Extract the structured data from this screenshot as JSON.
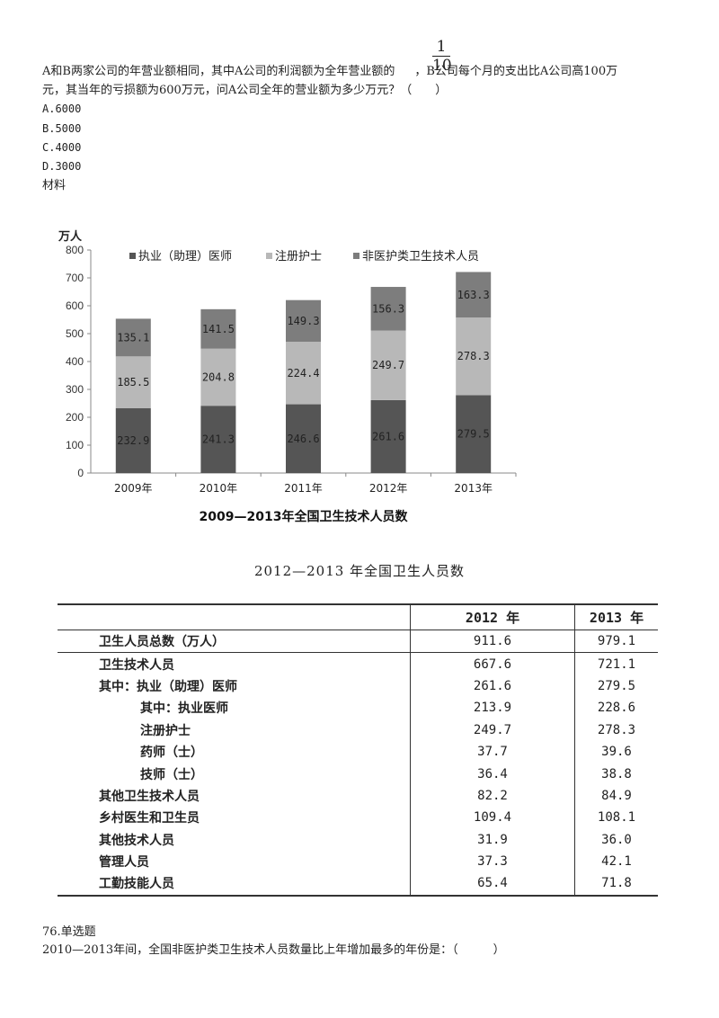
{
  "question": {
    "line1_before": "A和B两家公司的年营业额相同，其中A公司的利润额为全年营业额的",
    "line1_after": "，B公司每个月的支出比A公司高100万",
    "fraction_num": "1",
    "fraction_den": "10",
    "line2": "元，其当年的亏损额为600万元，问A公司全年的营业额为多少万元？（　　）",
    "options": [
      "A.6000",
      "B.5000",
      "C.4000",
      "D.3000"
    ],
    "material_label": "材料"
  },
  "chart_data": {
    "type": "bar",
    "stacked": true,
    "title": "2009—2013年全国卫生技术人员数",
    "ylabel": "万人",
    "ylim": [
      0,
      800
    ],
    "yticks": [
      0,
      100,
      200,
      300,
      400,
      500,
      600,
      700,
      800
    ],
    "categories": [
      "2009年",
      "2010年",
      "2011年",
      "2012年",
      "2013年"
    ],
    "series": [
      {
        "name": "执业（助理）医师",
        "color": "#555555",
        "values": [
          232.9,
          241.3,
          246.6,
          261.6,
          279.5
        ]
      },
      {
        "name": "注册护士",
        "color": "#b8b8b8",
        "values": [
          185.5,
          204.8,
          224.4,
          249.7,
          278.3
        ]
      },
      {
        "name": "非医护类卫生技术人员",
        "color": "#7d7d7d",
        "values": [
          135.1,
          141.5,
          149.3,
          156.3,
          163.3
        ]
      }
    ],
    "legend_position": "top",
    "grid": false
  },
  "table": {
    "title": "2012—2013 年全国卫生人员数",
    "headers": [
      "",
      "2012 年",
      "2013 年"
    ],
    "rows": [
      {
        "label": "卫生人员总数（万人）",
        "indent": 0,
        "v2012": "911.6",
        "v2013": "979.1"
      },
      {
        "label": "卫生技术人员",
        "indent": 0,
        "v2012": "667.6",
        "v2013": "721.1"
      },
      {
        "label": "其中：执业（助理）医师",
        "indent": 0,
        "v2012": "261.6",
        "v2013": "279.5"
      },
      {
        "label": "其中：执业医师",
        "indent": 1,
        "v2012": "213.9",
        "v2013": "228.6"
      },
      {
        "label": "注册护士",
        "indent": 1,
        "v2012": "249.7",
        "v2013": "278.3"
      },
      {
        "label": "药师（士）",
        "indent": 1,
        "v2012": "37.7",
        "v2013": "39.6"
      },
      {
        "label": "技师（士）",
        "indent": 1,
        "v2012": "36.4",
        "v2013": "38.8"
      },
      {
        "label": "其他卫生技术人员",
        "indent": 0,
        "v2012": "82.2",
        "v2013": "84.9"
      },
      {
        "label": "乡村医生和卫生员",
        "indent": 0,
        "v2012": "109.4",
        "v2013": "108.1"
      },
      {
        "label": "其他技术人员",
        "indent": 0,
        "v2012": "31.9",
        "v2013": "36.0"
      },
      {
        "label": "管理人员",
        "indent": 0,
        "v2012": "37.3",
        "v2013": "42.1"
      },
      {
        "label": "工勤技能人员",
        "indent": 0,
        "v2012": "65.4",
        "v2013": "71.8"
      }
    ]
  },
  "q76": {
    "number": "76.单选题",
    "text": "2010—2013年间，全国非医护类卫生技术人员数量比上年增加最多的年份是：（　　　）"
  }
}
